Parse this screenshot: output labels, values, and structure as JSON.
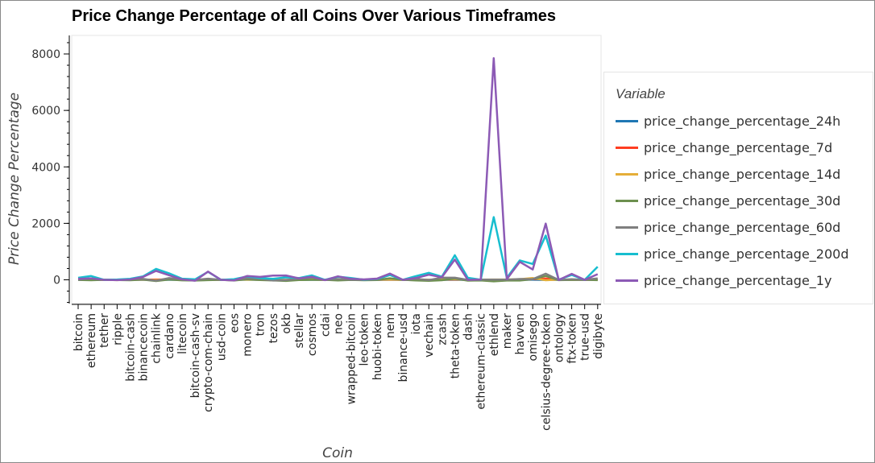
{
  "chart_data": {
    "type": "line",
    "title": "Price Change Percentage of all Coins Over Various Timeframes",
    "xlabel": "Coin",
    "ylabel": "Price Change Percentage",
    "ylim": [
      -800,
      8600
    ],
    "yticks": [
      0,
      2000,
      4000,
      6000,
      8000
    ],
    "grid": false,
    "legend_title": "Variable",
    "legend_position": "right",
    "categories": [
      "bitcoin",
      "ethereum",
      "tether",
      "ripple",
      "bitcoin-cash",
      "binancecoin",
      "chainlink",
      "cardano",
      "litecoin",
      "bitcoin-cash-sv",
      "crypto-com-chain",
      "usd-coin",
      "eos",
      "monero",
      "tron",
      "tezos",
      "okb",
      "stellar",
      "cosmos",
      "cdai",
      "neo",
      "wrapped-bitcoin",
      "leo-token",
      "huobi-token",
      "nem",
      "binance-usd",
      "iota",
      "vechain",
      "zcash",
      "theta-token",
      "dash",
      "ethereum-classic",
      "ethlend",
      "maker",
      "havven",
      "omisego",
      "celsius-degree-token",
      "ontology",
      "ftx-token",
      "true-usd",
      "digibyte"
    ],
    "series": [
      {
        "name": "price_change_percentage_24h",
        "color": "#1f77b4",
        "values": [
          1,
          1,
          0,
          -1,
          2,
          2,
          -1,
          1,
          0,
          1,
          -1,
          0,
          0,
          2,
          1,
          0,
          -2,
          1,
          1,
          0,
          1,
          1,
          0,
          0,
          1,
          0,
          1,
          -1,
          0,
          -1,
          0,
          1,
          -3,
          1,
          0,
          3,
          -3,
          -1,
          0,
          0,
          4
        ]
      },
      {
        "name": "price_change_percentage_7d",
        "color": "#ff3d21",
        "values": [
          7,
          10,
          0,
          -3,
          6,
          4,
          11,
          10,
          2,
          3,
          -1,
          0,
          1,
          12,
          2,
          -5,
          -3,
          3,
          8,
          0,
          6,
          7,
          -1,
          1,
          9,
          0,
          6,
          -3,
          -1,
          13,
          1,
          5,
          -6,
          9,
          3,
          21,
          45,
          2,
          3,
          0,
          4
        ]
      },
      {
        "name": "price_change_percentage_14d",
        "color": "#e5ae38",
        "values": [
          7,
          13,
          0,
          -10,
          14,
          9,
          -5,
          25,
          4,
          9,
          -5,
          0,
          2,
          8,
          3,
          -12,
          -12,
          5,
          16,
          -1,
          8,
          7,
          -1,
          5,
          11,
          0,
          16,
          -3,
          10,
          24,
          -2,
          6,
          10,
          11,
          19,
          64,
          -15,
          9,
          -3,
          0,
          14
        ]
      },
      {
        "name": "price_change_percentage_30d",
        "color": "#6d904f",
        "values": [
          -3,
          -14,
          0,
          -6,
          -14,
          9,
          -42,
          11,
          -16,
          -26,
          -12,
          0,
          -26,
          22,
          -5,
          -19,
          -40,
          -9,
          -1,
          0,
          -20,
          -3,
          -14,
          -6,
          55,
          0,
          -19,
          -36,
          -14,
          45,
          -28,
          -20,
          -53,
          -27,
          -26,
          24,
          137,
          -12,
          -3,
          0,
          -12
        ]
      },
      {
        "name": "price_change_percentage_60d",
        "color": "#7f7f7f",
        "values": [
          6,
          50,
          0,
          0,
          22,
          30,
          -31,
          60,
          12,
          -8,
          41,
          0,
          -9,
          58,
          33,
          -25,
          -12,
          40,
          79,
          -1,
          28,
          4,
          3,
          17,
          175,
          0,
          32,
          -9,
          74,
          73,
          -2,
          6,
          7,
          5,
          29,
          22,
          216,
          -3,
          20,
          0,
          50
        ]
      },
      {
        "name": "price_change_percentage_200d",
        "color": "#17becf",
        "values": [
          71,
          135,
          1,
          12,
          37,
          124,
          389,
          232,
          40,
          17,
          283,
          1,
          23,
          121,
          67,
          37,
          85,
          62,
          158,
          0,
          111,
          64,
          4,
          33,
          171,
          0,
          132,
          248,
          110,
          869,
          70,
          7,
          2223,
          71,
          687,
          562,
          1569,
          5,
          170,
          0,
          465
        ]
      },
      {
        "name": "price_change_percentage_1y",
        "color": "#8c5ab5",
        "values": [
          34,
          50,
          0,
          -11,
          12,
          102,
          317,
          163,
          17,
          -30,
          290,
          0,
          -22,
          133,
          103,
          152,
          155,
          50,
          109,
          -12,
          123,
          33,
          14,
          44,
          221,
          0,
          63,
          181,
          91,
          715,
          1,
          11,
          7852,
          22,
          637,
          364,
          1992,
          -5,
          212,
          0,
          199
        ]
      }
    ]
  }
}
